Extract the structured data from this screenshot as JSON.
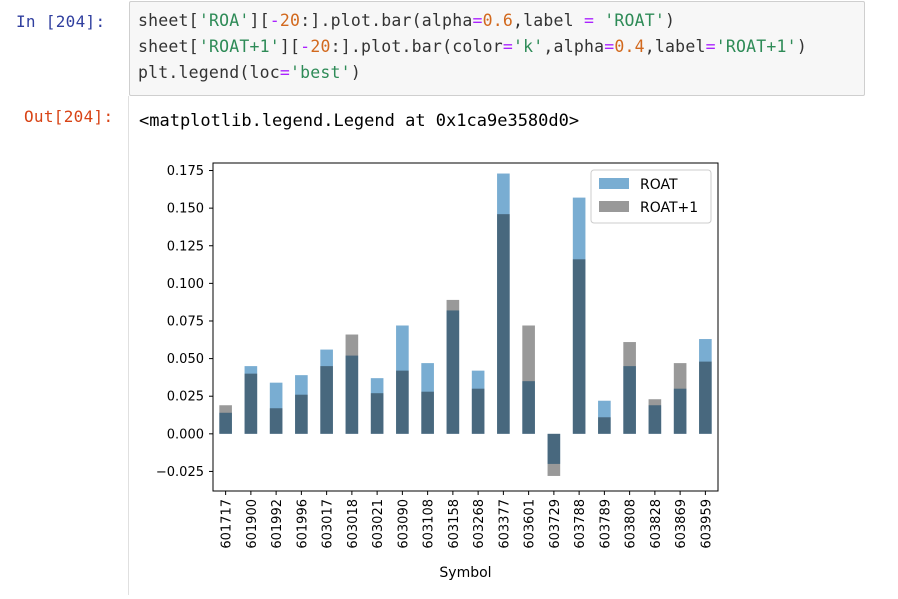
{
  "input_cell": {
    "prompt": "In  [204]:",
    "lines": [
      [
        {
          "t": "sheet[",
          "c": "plain"
        },
        {
          "t": "'ROA'",
          "c": "str"
        },
        {
          "t": "][",
          "c": "plain"
        },
        {
          "t": "-",
          "c": "op"
        },
        {
          "t": "20",
          "c": "num"
        },
        {
          "t": ":].plot.bar(alpha",
          "c": "plain"
        },
        {
          "t": "=",
          "c": "op"
        },
        {
          "t": "0.6",
          "c": "num"
        },
        {
          "t": ",label ",
          "c": "plain"
        },
        {
          "t": "=",
          "c": "op"
        },
        {
          "t": " ",
          "c": "plain"
        },
        {
          "t": "'ROAT'",
          "c": "str"
        },
        {
          "t": ")",
          "c": "plain"
        }
      ],
      [
        {
          "t": "sheet[",
          "c": "plain"
        },
        {
          "t": "'ROAT+1'",
          "c": "str"
        },
        {
          "t": "][",
          "c": "plain"
        },
        {
          "t": "-",
          "c": "op"
        },
        {
          "t": "20",
          "c": "num"
        },
        {
          "t": ":].plot.bar(color",
          "c": "plain"
        },
        {
          "t": "=",
          "c": "op"
        },
        {
          "t": "'k'",
          "c": "str"
        },
        {
          "t": ",alpha",
          "c": "plain"
        },
        {
          "t": "=",
          "c": "op"
        },
        {
          "t": "0.4",
          "c": "num"
        },
        {
          "t": ",label",
          "c": "plain"
        },
        {
          "t": "=",
          "c": "op"
        },
        {
          "t": "'ROAT+1'",
          "c": "str"
        },
        {
          "t": ")",
          "c": "plain"
        }
      ],
      [
        {
          "t": "plt.legend(loc",
          "c": "plain"
        },
        {
          "t": "=",
          "c": "op"
        },
        {
          "t": "'best'",
          "c": "str"
        },
        {
          "t": ")",
          "c": "plain"
        }
      ]
    ]
  },
  "output_cell": {
    "prompt": "Out[204]:",
    "text": "<matplotlib.legend.Legend at 0x1ca9e3580d0>"
  },
  "chart_data": {
    "type": "bar",
    "categories": [
      "601717",
      "601900",
      "601992",
      "601996",
      "603017",
      "603018",
      "603021",
      "603090",
      "603108",
      "603158",
      "603268",
      "603377",
      "603601",
      "603729",
      "603788",
      "603789",
      "603808",
      "603828",
      "603869",
      "603959"
    ],
    "series": [
      {
        "name": "ROAT",
        "color": "#1f77b4",
        "alpha": 0.6,
        "values": [
          0.014,
          0.045,
          0.034,
          0.039,
          0.056,
          0.052,
          0.037,
          0.072,
          0.047,
          0.082,
          0.042,
          0.173,
          0.035,
          -0.02,
          0.157,
          0.022,
          0.045,
          0.019,
          0.03,
          0.063
        ]
      },
      {
        "name": "ROAT+1",
        "color": "#000000",
        "alpha": 0.4,
        "values": [
          0.019,
          0.04,
          0.017,
          0.026,
          0.045,
          0.066,
          0.027,
          0.042,
          0.028,
          0.089,
          0.03,
          0.146,
          0.072,
          -0.028,
          0.116,
          0.011,
          0.061,
          0.023,
          0.047,
          0.048
        ]
      }
    ],
    "xlabel": "Symbol",
    "ylabel": "",
    "ylim": [
      -0.038,
      0.18
    ],
    "yticks": [
      "0.175",
      "0.150",
      "0.125",
      "0.100",
      "0.075",
      "0.050",
      "0.025",
      "0.000",
      "−0.025"
    ],
    "ytick_values": [
      0.175,
      0.15,
      0.125,
      0.1,
      0.075,
      0.05,
      0.025,
      0.0,
      -0.025
    ],
    "legend_position": "upper-right",
    "grid": false
  }
}
